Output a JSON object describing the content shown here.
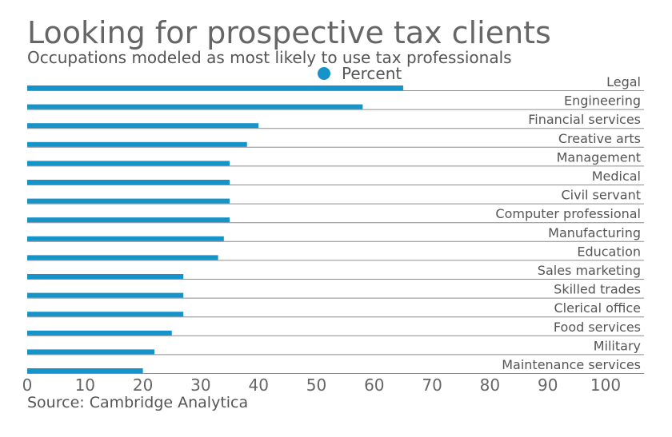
{
  "chart_data": {
    "type": "bar",
    "orientation": "horizontal",
    "title": "Looking for prospective tax clients",
    "subtitle": "Occupations modeled as most likely to use tax professionals",
    "legend": {
      "entries": [
        {
          "name": "Percent",
          "color": "#1693c9"
        }
      ],
      "placement": "top-center"
    },
    "categories": [
      "Legal",
      "Engineering",
      "Financial services",
      "Creative arts",
      "Management",
      "Medical",
      "Civil servant",
      "Computer professional",
      "Manufacturing",
      "Education",
      "Sales marketing",
      "Skilled trades",
      "Clerical office",
      "Food services",
      "Military",
      "Maintenance services"
    ],
    "series": [
      {
        "name": "Percent",
        "color": "#1693c9",
        "values": [
          65,
          58,
          40,
          38,
          35,
          35,
          35,
          35,
          34,
          33,
          27,
          27,
          27,
          25,
          22,
          20
        ]
      }
    ],
    "xlim": [
      0,
      100
    ],
    "xticks": [
      "0",
      "10",
      "20",
      "30",
      "40",
      "50",
      "60",
      "70",
      "80",
      "90",
      "100"
    ],
    "grid": false,
    "source": "Source: Cambridge Analytica"
  }
}
